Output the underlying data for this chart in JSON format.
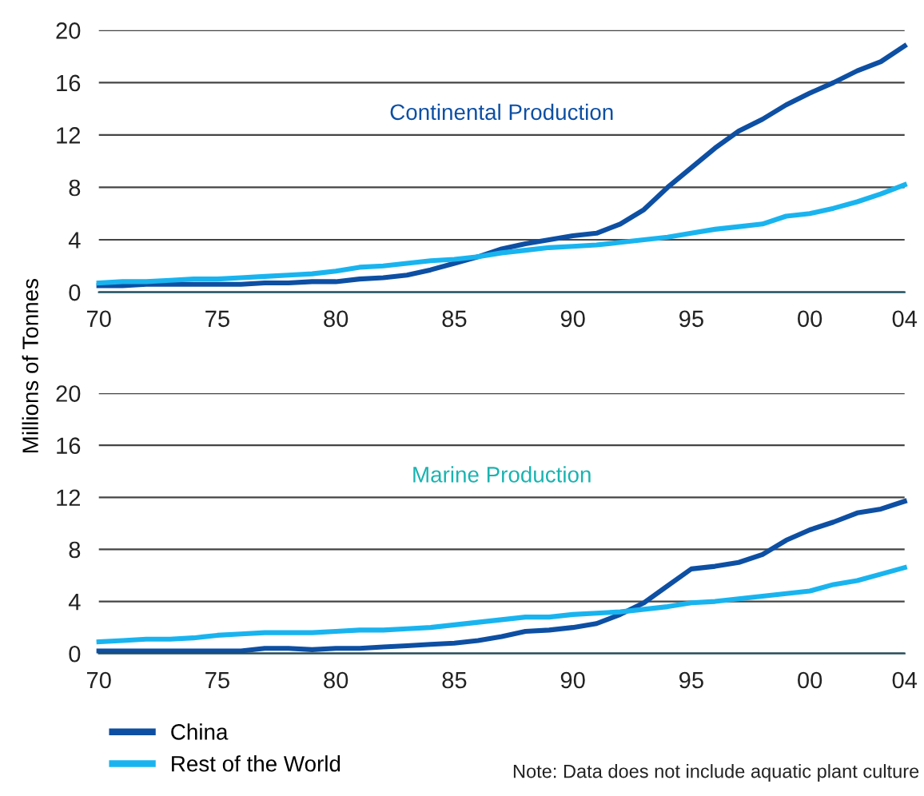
{
  "chart_data": [
    {
      "type": "line",
      "title": "Continental Production",
      "ylabel": "Millions of Tonnes",
      "x": [
        1970,
        1971,
        1972,
        1973,
        1974,
        1975,
        1976,
        1977,
        1978,
        1979,
        1980,
        1981,
        1982,
        1983,
        1984,
        1985,
        1986,
        1987,
        1988,
        1989,
        1990,
        1991,
        1992,
        1993,
        1994,
        1995,
        1996,
        1997,
        1998,
        1999,
        2000,
        2001,
        2002,
        2003,
        2004
      ],
      "series": [
        {
          "name": "China",
          "color": "#0d4fa3",
          "values": [
            0.5,
            0.5,
            0.6,
            0.6,
            0.6,
            0.6,
            0.6,
            0.7,
            0.7,
            0.8,
            0.8,
            1.0,
            1.1,
            1.3,
            1.7,
            2.2,
            2.7,
            3.3,
            3.7,
            4.0,
            4.3,
            4.5,
            5.2,
            6.3,
            8.0,
            9.5,
            11.0,
            12.3,
            13.2,
            14.3,
            15.2,
            16.0,
            16.9,
            17.6,
            18.8
          ]
        },
        {
          "name": "Rest of the World",
          "color": "#19b4ef",
          "values": [
            0.7,
            0.8,
            0.8,
            0.9,
            1.0,
            1.0,
            1.1,
            1.2,
            1.3,
            1.4,
            1.6,
            1.9,
            2.0,
            2.2,
            2.4,
            2.5,
            2.7,
            3.0,
            3.2,
            3.4,
            3.5,
            3.6,
            3.8,
            4.0,
            4.2,
            4.5,
            4.8,
            5.0,
            5.2,
            5.8,
            6.0,
            6.4,
            6.9,
            7.5,
            8.2
          ]
        }
      ],
      "xlim": [
        1970,
        2004
      ],
      "xticks": [
        {
          "value": 1970,
          "label": "70"
        },
        {
          "value": 1975,
          "label": "75"
        },
        {
          "value": 1980,
          "label": "80"
        },
        {
          "value": 1985,
          "label": "85"
        },
        {
          "value": 1990,
          "label": "90"
        },
        {
          "value": 1995,
          "label": "95"
        },
        {
          "value": 2000,
          "label": "00"
        },
        {
          "value": 2004,
          "label": "04"
        }
      ],
      "ylim": [
        0,
        20
      ],
      "yticks": [
        0,
        4,
        8,
        12,
        16,
        20
      ],
      "grid": "y",
      "legend": "bottom left"
    },
    {
      "type": "line",
      "title": "Marine Production",
      "x": [
        1970,
        1971,
        1972,
        1973,
        1974,
        1975,
        1976,
        1977,
        1978,
        1979,
        1980,
        1981,
        1982,
        1983,
        1984,
        1985,
        1986,
        1987,
        1988,
        1989,
        1990,
        1991,
        1992,
        1993,
        1994,
        1995,
        1996,
        1997,
        1998,
        1999,
        2000,
        2001,
        2002,
        2003,
        2004
      ],
      "series": [
        {
          "name": "China",
          "color": "#0d4fa3",
          "values": [
            0.2,
            0.2,
            0.2,
            0.2,
            0.2,
            0.2,
            0.2,
            0.4,
            0.4,
            0.3,
            0.4,
            0.4,
            0.5,
            0.6,
            0.7,
            0.8,
            1.0,
            1.3,
            1.7,
            1.8,
            2.0,
            2.3,
            3.0,
            3.9,
            5.2,
            6.5,
            6.7,
            7.0,
            7.6,
            8.7,
            9.5,
            10.1,
            10.8,
            11.1,
            11.7
          ]
        },
        {
          "name": "Rest of the World",
          "color": "#19b4ef",
          "values": [
            0.9,
            1.0,
            1.1,
            1.1,
            1.2,
            1.4,
            1.5,
            1.6,
            1.6,
            1.6,
            1.7,
            1.8,
            1.8,
            1.9,
            2.0,
            2.2,
            2.4,
            2.6,
            2.8,
            2.8,
            3.0,
            3.1,
            3.2,
            3.4,
            3.6,
            3.9,
            4.0,
            4.2,
            4.4,
            4.6,
            4.8,
            5.3,
            5.6,
            6.1,
            6.6
          ]
        }
      ],
      "xlim": [
        1970,
        2004
      ],
      "xticks": [
        {
          "value": 1970,
          "label": "70"
        },
        {
          "value": 1975,
          "label": "75"
        },
        {
          "value": 1980,
          "label": "80"
        },
        {
          "value": 1985,
          "label": "85"
        },
        {
          "value": 1990,
          "label": "90"
        },
        {
          "value": 1995,
          "label": "95"
        },
        {
          "value": 2000,
          "label": "00"
        },
        {
          "value": 2004,
          "label": "04"
        }
      ],
      "ylim": [
        0,
        20
      ],
      "yticks": [
        0,
        4,
        8,
        12,
        16,
        20
      ],
      "grid": "y",
      "legend": "bottom left",
      "annotations": [
        "Note: Data does not include aquatic plant culture"
      ]
    }
  ]
}
